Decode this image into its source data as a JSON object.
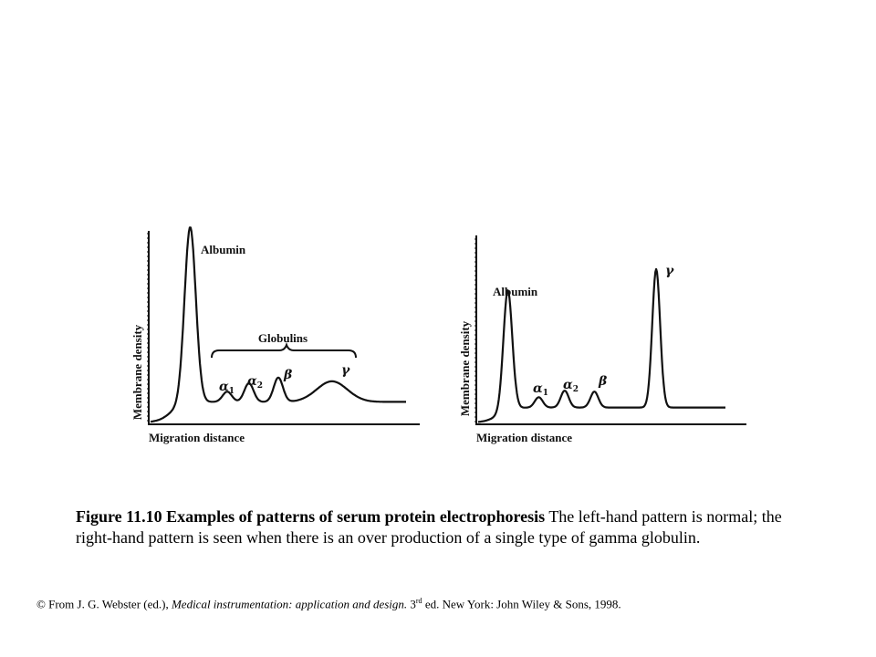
{
  "chart_data": [
    {
      "type": "line",
      "ylabel": "Membrane density",
      "xlabel": "Migration distance",
      "annotations": [
        "Albumin",
        "Globulins"
      ],
      "peak_labels": [
        {
          "symbol": "α",
          "sub": "1"
        },
        {
          "symbol": "α",
          "sub": "2"
        },
        {
          "symbol": "β",
          "sub": ""
        },
        {
          "symbol": "γ",
          "sub": ""
        }
      ],
      "peaks": [
        {
          "name": "albumin",
          "center": 0.155,
          "width": 0.022,
          "height": 0.94
        },
        {
          "name": "alpha1",
          "center": 0.3,
          "width": 0.018,
          "height": 0.055
        },
        {
          "name": "alpha2",
          "center": 0.385,
          "width": 0.018,
          "height": 0.1
        },
        {
          "name": "beta",
          "center": 0.5,
          "width": 0.018,
          "height": 0.13
        },
        {
          "name": "gamma",
          "center": 0.71,
          "width": 0.06,
          "height": 0.11
        }
      ],
      "baseline": 0.11
    },
    {
      "type": "line",
      "ylabel": "Membrane density",
      "xlabel": "Migration distance",
      "annotations": [
        "Albumin"
      ],
      "peak_labels": [
        {
          "symbol": "α",
          "sub": "1"
        },
        {
          "symbol": "α",
          "sub": "2"
        },
        {
          "symbol": "β",
          "sub": ""
        },
        {
          "symbol": "γ",
          "sub": ""
        }
      ],
      "peaks": [
        {
          "name": "albumin",
          "center": 0.12,
          "width": 0.018,
          "height": 0.64
        },
        {
          "name": "alpha1",
          "center": 0.245,
          "width": 0.016,
          "height": 0.055
        },
        {
          "name": "alpha2",
          "center": 0.35,
          "width": 0.016,
          "height": 0.09
        },
        {
          "name": "beta",
          "center": 0.47,
          "width": 0.016,
          "height": 0.085
        },
        {
          "name": "gamma",
          "center": 0.72,
          "width": 0.016,
          "height": 0.74
        }
      ],
      "baseline": 0.08
    }
  ],
  "caption": {
    "bold": "Figure 11.10 Examples of patterns of serum protein electrophoresis",
    "text": "The left-hand pattern is normal; the right-hand pattern is seen when there is an over production of a single type of gamma  globulin."
  },
  "credit": {
    "prefix": "© From J. G. Webster (ed.),",
    "title": "Medical instrumentation: application and design.",
    "edition": "3",
    "edition_sup": "rd",
    "suffix": "ed. New York: John Wiley & Sons, 1998."
  }
}
